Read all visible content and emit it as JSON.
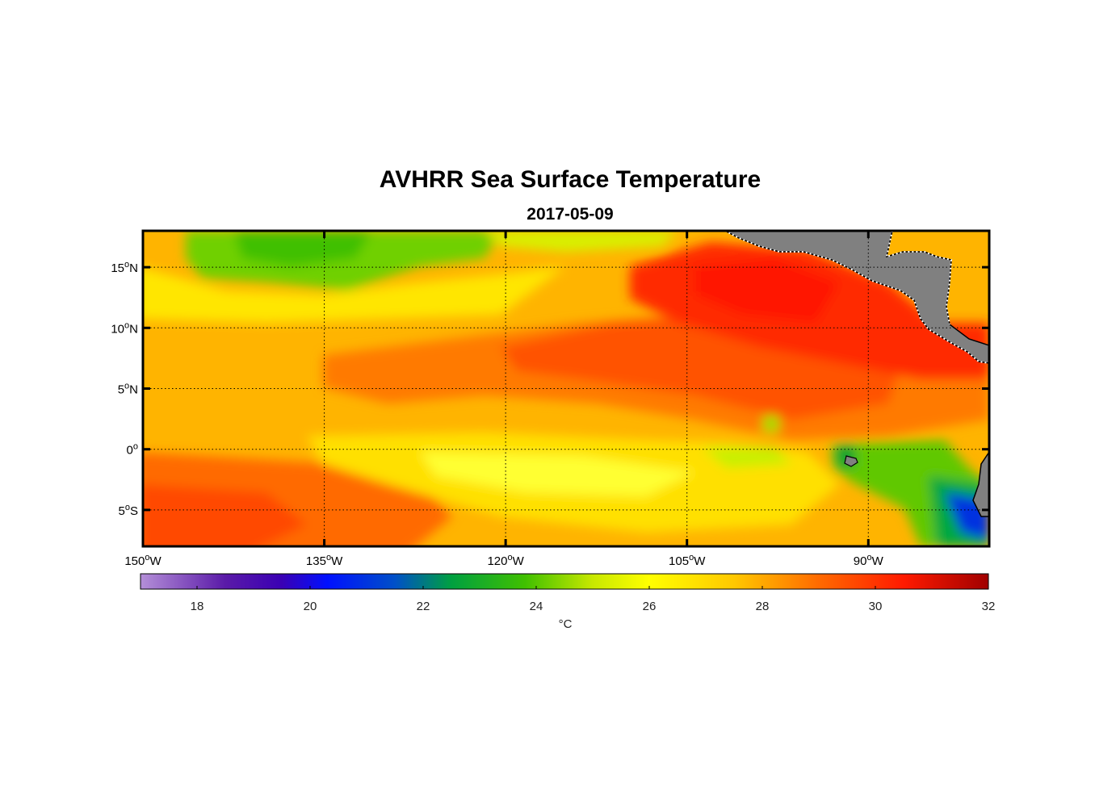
{
  "title": "AVHRR Sea Surface Temperature",
  "subtitle": "2017-05-09",
  "map": {
    "lon_range": [
      -150,
      -80
    ],
    "lat_range": [
      -8,
      18
    ],
    "lat_ticks": [
      {
        "value": 15,
        "num": "15",
        "sup": "o",
        "hemi": "N"
      },
      {
        "value": 10,
        "num": "10",
        "sup": "o",
        "hemi": "N"
      },
      {
        "value": 5,
        "num": "5",
        "sup": "o",
        "hemi": "N"
      },
      {
        "value": 0,
        "num": "0",
        "sup": "o",
        "hemi": ""
      },
      {
        "value": -5,
        "num": "5",
        "sup": "o",
        "hemi": "S"
      }
    ],
    "lon_ticks": [
      {
        "value": -150,
        "num": "150",
        "sup": "o",
        "hemi": "W"
      },
      {
        "value": -135,
        "num": "135",
        "sup": "o",
        "hemi": "W"
      },
      {
        "value": -120,
        "num": "120",
        "sup": "o",
        "hemi": "W"
      },
      {
        "value": -105,
        "num": "105",
        "sup": "o",
        "hemi": "W"
      },
      {
        "value": -90,
        "num": "90",
        "sup": "o",
        "hemi": "W"
      }
    ],
    "land_color": "#808080"
  },
  "colorbar": {
    "min": 17,
    "max": 32,
    "ticks": [
      18,
      20,
      22,
      24,
      26,
      28,
      30,
      32
    ],
    "units": "°C",
    "stops": [
      {
        "v": 17,
        "c": "#b48fd8"
      },
      {
        "v": 18.5,
        "c": "#5a1aa8"
      },
      {
        "v": 19.5,
        "c": "#3a00b4"
      },
      {
        "v": 20.3,
        "c": "#0010ff"
      },
      {
        "v": 21.5,
        "c": "#0050c8"
      },
      {
        "v": 22.5,
        "c": "#00a040"
      },
      {
        "v": 23.8,
        "c": "#40c000"
      },
      {
        "v": 25,
        "c": "#c8e800"
      },
      {
        "v": 26,
        "c": "#ffff00"
      },
      {
        "v": 27.5,
        "c": "#ffc800"
      },
      {
        "v": 29,
        "c": "#ff6a00"
      },
      {
        "v": 30.5,
        "c": "#ff1a00"
      },
      {
        "v": 32,
        "c": "#a00000"
      }
    ]
  }
}
